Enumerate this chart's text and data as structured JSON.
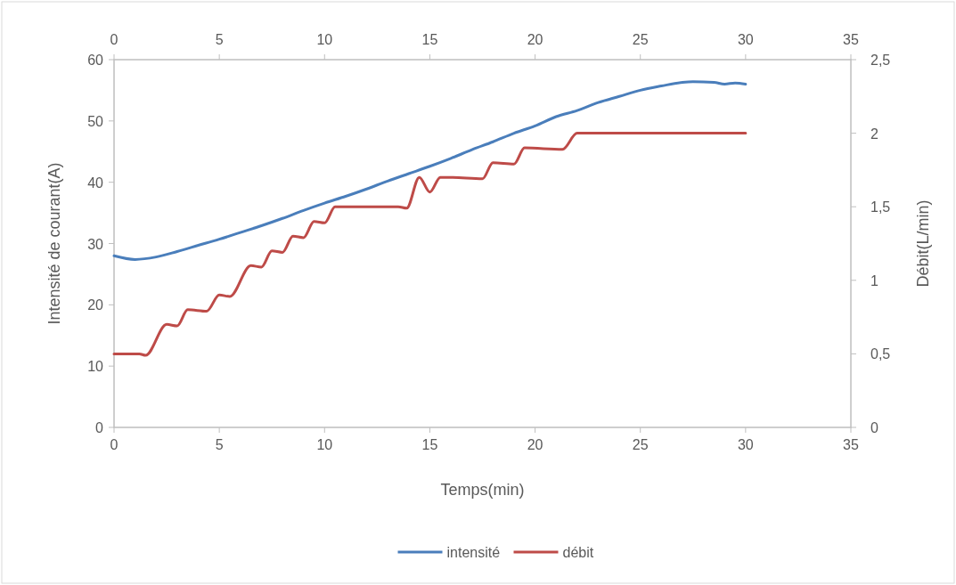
{
  "chart_data": {
    "type": "line",
    "xlabel": "Temps(min)",
    "ylabel": "Intensité de courant(A)",
    "y2label": "Débit(L/min)",
    "xlim": [
      0,
      35
    ],
    "xticks": [
      0,
      5,
      10,
      15,
      20,
      25,
      30,
      35
    ],
    "x2lim": [
      0,
      35
    ],
    "x2ticks": [
      0,
      5,
      10,
      15,
      20,
      25,
      30,
      35
    ],
    "ylim": [
      0,
      60
    ],
    "yticks": [
      0,
      10,
      20,
      30,
      40,
      50,
      60
    ],
    "y2lim": [
      0,
      2.5
    ],
    "y2ticks": [
      0,
      {
        "value": 0.5,
        "label": "0,5"
      },
      1,
      {
        "value": 1.5,
        "label": "1,5"
      },
      2,
      {
        "value": 2.5,
        "label": "2,5"
      }
    ],
    "grid": false,
    "legend": "bottom",
    "marker": "none",
    "line_style": "solid",
    "series": [
      {
        "name": "intensité",
        "color": "#4a7ebb",
        "x": [
          0,
          1,
          2,
          3,
          4,
          5,
          6,
          7,
          8,
          9,
          10,
          11,
          12,
          13,
          14,
          15,
          16,
          17,
          18,
          19,
          20,
          21,
          22,
          23,
          24,
          25,
          26,
          27,
          27.5,
          28.5,
          29,
          29.5,
          30
        ],
        "values": [
          28,
          27.4,
          27.8,
          28.7,
          29.7,
          30.7,
          31.8,
          32.9,
          34.1,
          35.4,
          36.6,
          37.7,
          38.9,
          40.2,
          41.4,
          42.6,
          43.9,
          45.3,
          46.6,
          48,
          49.2,
          50.7,
          51.7,
          53,
          54,
          55,
          55.7,
          56.3,
          56.4,
          56.3,
          56,
          56.2,
          56
        ]
      },
      {
        "name": "débit",
        "color": "#be4b48",
        "axis": "y2",
        "x": [
          0,
          1.2,
          1.5,
          2.5,
          3,
          3.5,
          4.4,
          5,
          5.5,
          6.5,
          7,
          7.5,
          8,
          8.5,
          9,
          9.5,
          10,
          10.5,
          11,
          13.5,
          13.9,
          14.5,
          15,
          15.5,
          16,
          17.5,
          18,
          19,
          19.5,
          21.3,
          22,
          22.5,
          30
        ],
        "values": [
          0.5,
          0.5,
          0.49,
          0.7,
          0.69,
          0.8,
          0.79,
          0.9,
          0.89,
          1.1,
          1.09,
          1.2,
          1.19,
          1.3,
          1.29,
          1.4,
          1.39,
          1.5,
          1.5,
          1.5,
          1.49,
          1.7,
          1.6,
          1.7,
          1.7,
          1.69,
          1.8,
          1.79,
          1.9,
          1.89,
          2,
          2,
          2
        ]
      }
    ]
  }
}
